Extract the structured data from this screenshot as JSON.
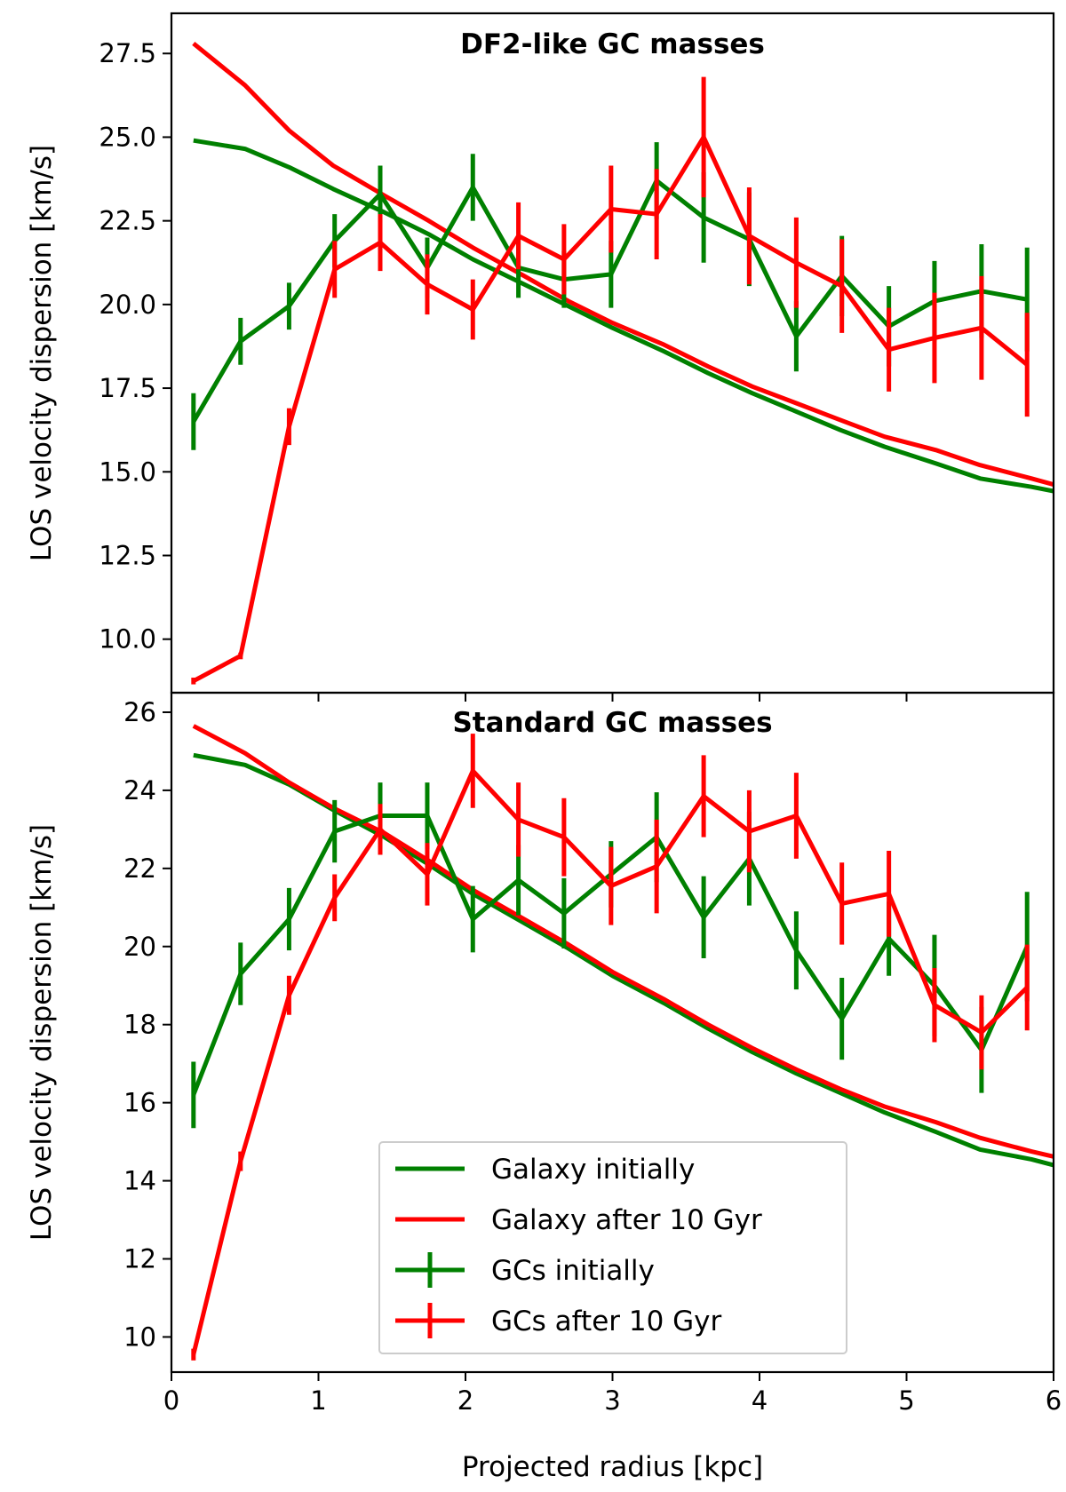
{
  "chart_data": [
    {
      "type": "line",
      "title": "DF2-like GC masses",
      "xlabel": "",
      "ylabel": "LOS velocity dispersion [km/s]",
      "xlim": [
        0,
        6
      ],
      "ylim": [
        8.4,
        28.7
      ],
      "xticks": [
        1,
        2,
        3,
        4,
        5
      ],
      "yticks": [
        10.0,
        12.5,
        15.0,
        17.5,
        20.0,
        22.5,
        25.0,
        27.5
      ],
      "ytick_labels": [
        "10.0",
        "12.5",
        "15.0",
        "17.5",
        "20.0",
        "22.5",
        "25.0",
        "27.5"
      ],
      "grid": false,
      "series": [
        {
          "name": "Galaxy initially",
          "color": "#008000",
          "errorbars": false,
          "x": [
            0.15,
            0.5,
            0.8,
            1.1,
            1.45,
            1.75,
            2.05,
            2.4,
            2.7,
            3.0,
            3.35,
            3.65,
            3.95,
            4.25,
            4.55,
            4.85,
            5.2,
            5.5,
            5.85,
            6.0
          ],
          "y": [
            24.9,
            24.65,
            24.1,
            23.45,
            22.75,
            22.1,
            21.35,
            20.6,
            19.95,
            19.3,
            18.6,
            17.95,
            17.35,
            16.8,
            16.25,
            15.75,
            15.25,
            14.8,
            14.55,
            14.42
          ]
        },
        {
          "name": "Galaxy after 10 Gyr",
          "color": "#ff0000",
          "errorbars": false,
          "x": [
            0.15,
            0.5,
            0.8,
            1.1,
            1.45,
            1.75,
            2.05,
            2.4,
            2.7,
            3.0,
            3.35,
            3.65,
            3.95,
            4.25,
            4.55,
            4.85,
            5.2,
            5.5,
            5.85,
            6.0
          ],
          "y": [
            27.8,
            26.55,
            25.2,
            24.15,
            23.25,
            22.5,
            21.7,
            20.85,
            20.1,
            19.45,
            18.8,
            18.15,
            17.55,
            17.05,
            16.55,
            16.05,
            15.65,
            15.2,
            14.8,
            14.62
          ]
        },
        {
          "name": "GCs initially",
          "color": "#008000",
          "errorbars": true,
          "x": [
            0.15,
            0.47,
            0.8,
            1.11,
            1.42,
            1.74,
            2.05,
            2.36,
            2.67,
            2.99,
            3.3,
            3.62,
            3.93,
            4.25,
            4.56,
            4.88,
            5.19,
            5.51,
            5.82
          ],
          "y": [
            16.5,
            18.9,
            19.95,
            21.9,
            23.3,
            21.1,
            23.5,
            21.1,
            20.75,
            20.9,
            23.7,
            22.6,
            21.95,
            19.05,
            20.85,
            19.35,
            20.1,
            20.4,
            20.15
          ],
          "yerr": [
            0.85,
            0.7,
            0.7,
            0.8,
            0.85,
            0.9,
            1.0,
            0.9,
            0.85,
            1.0,
            1.15,
            1.35,
            1.4,
            1.05,
            1.2,
            1.2,
            1.2,
            1.4,
            1.55
          ]
        },
        {
          "name": "GCs after 10 Gyr",
          "color": "#ff0000",
          "errorbars": true,
          "x": [
            0.15,
            0.47,
            0.8,
            1.11,
            1.42,
            1.74,
            2.05,
            2.36,
            2.67,
            2.99,
            3.3,
            3.62,
            3.93,
            4.25,
            4.56,
            4.88,
            5.19,
            5.51,
            5.82
          ],
          "y": [
            8.75,
            9.5,
            16.35,
            21.05,
            21.85,
            20.6,
            19.85,
            22.05,
            21.35,
            22.85,
            22.7,
            25.0,
            22.05,
            21.25,
            20.55,
            18.65,
            19.0,
            19.3,
            18.2
          ],
          "yerr": [
            0.1,
            0.1,
            0.55,
            0.85,
            0.85,
            0.9,
            0.9,
            1.0,
            1.05,
            1.3,
            1.35,
            1.8,
            1.45,
            1.35,
            1.4,
            1.25,
            1.35,
            1.55,
            1.55
          ]
        }
      ]
    },
    {
      "type": "line",
      "title": "Standard GC masses",
      "xlabel": "Projected radius [kpc]",
      "ylabel": "LOS velocity dispersion [km/s]",
      "xlim": [
        0,
        6
      ],
      "ylim": [
        9.1,
        26.5
      ],
      "xticks": [
        0,
        1,
        2,
        3,
        4,
        5,
        6
      ],
      "xtick_labels": [
        "0",
        "1",
        "2",
        "3",
        "4",
        "5",
        "6"
      ],
      "yticks": [
        10,
        12,
        14,
        16,
        18,
        20,
        22,
        24,
        26
      ],
      "ytick_labels": [
        "10",
        "12",
        "14",
        "16",
        "18",
        "20",
        "22",
        "24",
        "26"
      ],
      "grid": false,
      "legend": {
        "position": "lower-center",
        "entries": [
          "Galaxy initially",
          "Galaxy after 10 Gyr",
          "GCs initially",
          "GCs after 10 Gyr"
        ]
      },
      "series": [
        {
          "name": "Galaxy initially",
          "color": "#008000",
          "errorbars": false,
          "x": [
            0.15,
            0.5,
            0.8,
            1.1,
            1.45,
            1.75,
            2.05,
            2.4,
            2.7,
            3.0,
            3.35,
            3.65,
            3.95,
            4.25,
            4.55,
            4.85,
            5.2,
            5.5,
            5.85,
            6.0
          ],
          "y": [
            24.9,
            24.65,
            24.15,
            23.5,
            22.8,
            22.1,
            21.35,
            20.6,
            19.95,
            19.25,
            18.55,
            17.9,
            17.3,
            16.75,
            16.25,
            15.75,
            15.25,
            14.8,
            14.55,
            14.4
          ]
        },
        {
          "name": "Galaxy after 10 Gyr",
          "color": "#ff0000",
          "errorbars": false,
          "x": [
            0.15,
            0.5,
            0.8,
            1.1,
            1.45,
            1.75,
            2.05,
            2.4,
            2.7,
            3.0,
            3.35,
            3.65,
            3.95,
            4.25,
            4.55,
            4.85,
            5.2,
            5.5,
            5.85,
            6.0
          ],
          "y": [
            25.65,
            24.95,
            24.2,
            23.55,
            22.9,
            22.2,
            21.45,
            20.7,
            20.05,
            19.35,
            18.65,
            18.0,
            17.4,
            16.85,
            16.35,
            15.9,
            15.5,
            15.1,
            14.75,
            14.62
          ]
        },
        {
          "name": "GCs initially",
          "color": "#008000",
          "errorbars": true,
          "x": [
            0.15,
            0.47,
            0.8,
            1.11,
            1.42,
            1.74,
            2.05,
            2.36,
            2.67,
            2.99,
            3.3,
            3.62,
            3.93,
            4.25,
            4.56,
            4.88,
            5.19,
            5.51,
            5.82
          ],
          "y": [
            16.2,
            19.3,
            20.7,
            22.95,
            23.35,
            23.35,
            20.7,
            21.7,
            20.85,
            21.85,
            22.8,
            20.75,
            22.25,
            19.9,
            18.15,
            20.2,
            19.0,
            17.35,
            20.0
          ],
          "yerr": [
            0.85,
            0.8,
            0.8,
            0.8,
            0.85,
            0.85,
            0.85,
            0.9,
            0.9,
            0.85,
            1.15,
            1.05,
            1.2,
            1.0,
            1.05,
            0.95,
            1.3,
            1.1,
            1.4
          ]
        },
        {
          "name": "GCs after 10 Gyr",
          "color": "#ff0000",
          "errorbars": true,
          "x": [
            0.15,
            0.47,
            0.8,
            1.11,
            1.42,
            1.74,
            2.05,
            2.36,
            2.67,
            2.99,
            3.3,
            3.62,
            3.93,
            4.25,
            4.56,
            4.88,
            5.19,
            5.51,
            5.82
          ],
          "y": [
            9.55,
            14.5,
            18.75,
            21.25,
            23.0,
            21.85,
            24.5,
            23.25,
            22.8,
            21.55,
            22.05,
            23.85,
            22.95,
            23.35,
            21.1,
            21.35,
            18.5,
            17.8,
            18.95
          ],
          "yerr": [
            0.15,
            0.25,
            0.5,
            0.6,
            0.65,
            0.8,
            0.95,
            0.95,
            1.0,
            1.0,
            1.2,
            1.05,
            1.05,
            1.1,
            1.05,
            1.1,
            0.95,
            0.95,
            1.1
          ]
        }
      ]
    }
  ]
}
